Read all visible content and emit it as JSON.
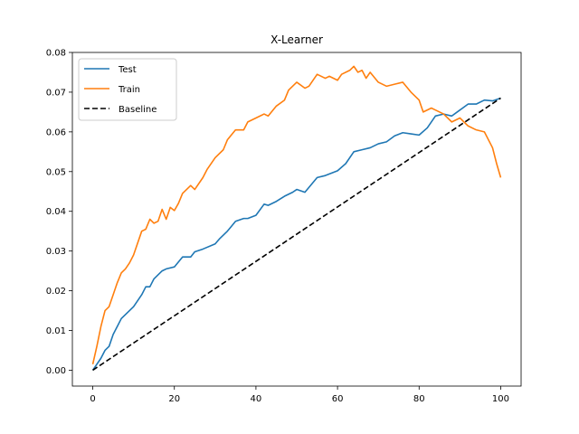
{
  "chart_data": {
    "type": "line",
    "title": "X-Learner",
    "xlabel": "",
    "ylabel": "",
    "xlim": [
      -5,
      105
    ],
    "ylim": [
      -0.004,
      0.08
    ],
    "xticks": [
      0,
      20,
      40,
      60,
      80,
      100
    ],
    "xtick_labels": [
      "0",
      "20",
      "40",
      "60",
      "80",
      "100"
    ],
    "yticks": [
      0.0,
      0.01,
      0.02,
      0.03,
      0.04,
      0.05,
      0.06,
      0.07,
      0.08
    ],
    "ytick_labels": [
      "0.00",
      "0.01",
      "0.02",
      "0.03",
      "0.04",
      "0.05",
      "0.06",
      "0.07",
      "0.08"
    ],
    "grid": false,
    "legend_position": "top-left",
    "series": [
      {
        "name": "Test",
        "color": "#1f77b4",
        "style": "solid",
        "x": [
          0,
          2,
          3,
          4,
          5,
          6,
          7,
          8,
          10,
          12,
          13,
          14,
          15,
          17,
          18,
          20,
          22,
          24,
          25,
          27,
          30,
          31,
          33,
          35,
          37,
          38,
          40,
          42,
          43,
          45,
          47,
          49,
          50,
          52,
          55,
          57,
          59,
          60,
          62,
          64,
          66,
          68,
          70,
          72,
          74,
          76,
          78,
          80,
          82,
          84,
          86,
          88,
          90,
          92,
          94,
          96,
          98,
          100
        ],
        "y": [
          0.0,
          0.003,
          0.005,
          0.006,
          0.009,
          0.011,
          0.013,
          0.014,
          0.016,
          0.019,
          0.021,
          0.021,
          0.023,
          0.025,
          0.0255,
          0.026,
          0.0285,
          0.0285,
          0.0298,
          0.0305,
          0.0318,
          0.033,
          0.035,
          0.0375,
          0.0382,
          0.0382,
          0.039,
          0.0418,
          0.0415,
          0.0425,
          0.0438,
          0.0448,
          0.0455,
          0.0448,
          0.0485,
          0.049,
          0.0498,
          0.0502,
          0.052,
          0.055,
          0.0555,
          0.056,
          0.057,
          0.0575,
          0.059,
          0.0598,
          0.0595,
          0.0592,
          0.061,
          0.064,
          0.0645,
          0.064,
          0.0655,
          0.067,
          0.067,
          0.068,
          0.0678,
          0.0685
        ]
      },
      {
        "name": "Train",
        "color": "#ff7f0e",
        "style": "solid",
        "x": [
          0,
          1,
          2,
          3,
          4,
          5,
          6,
          7,
          8,
          9,
          10,
          12,
          13,
          14,
          15,
          16,
          17,
          18,
          19,
          20,
          21,
          22,
          24,
          25,
          27,
          28,
          30,
          32,
          33,
          35,
          37,
          38,
          40,
          42,
          43,
          45,
          47,
          48,
          50,
          52,
          53,
          55,
          57,
          58,
          60,
          61,
          63,
          64,
          65,
          66,
          67,
          68,
          70,
          72,
          74,
          76,
          78,
          80,
          81,
          83,
          84,
          86,
          88,
          90,
          92,
          94,
          96,
          98,
          99,
          100
        ],
        "y": [
          0.0015,
          0.006,
          0.011,
          0.015,
          0.016,
          0.019,
          0.022,
          0.0245,
          0.0255,
          0.027,
          0.029,
          0.035,
          0.0355,
          0.038,
          0.037,
          0.0375,
          0.0405,
          0.038,
          0.041,
          0.0402,
          0.042,
          0.0445,
          0.0465,
          0.0455,
          0.0485,
          0.0505,
          0.0535,
          0.0555,
          0.058,
          0.0605,
          0.0605,
          0.0625,
          0.0635,
          0.0645,
          0.064,
          0.0665,
          0.068,
          0.0705,
          0.0725,
          0.071,
          0.0715,
          0.0745,
          0.0735,
          0.074,
          0.073,
          0.0745,
          0.0755,
          0.0765,
          0.075,
          0.0755,
          0.0735,
          0.075,
          0.0725,
          0.0715,
          0.072,
          0.0725,
          0.07,
          0.068,
          0.065,
          0.066,
          0.0655,
          0.0645,
          0.0625,
          0.0635,
          0.0615,
          0.0605,
          0.06,
          0.056,
          0.052,
          0.0485
        ]
      },
      {
        "name": "Baseline",
        "color": "#000000",
        "style": "dashed",
        "x": [
          0,
          100
        ],
        "y": [
          0.0,
          0.0685
        ]
      }
    ]
  }
}
